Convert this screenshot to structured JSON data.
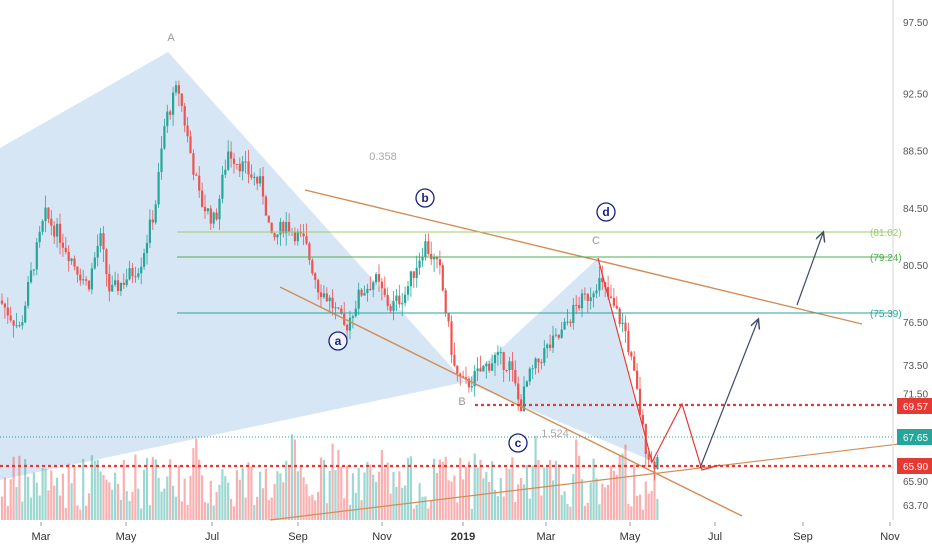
{
  "chart_data": {
    "type": "candlestick",
    "x_axis": {
      "labels": [
        "Mar",
        "May",
        "Jul",
        "Sep",
        "Nov",
        "2019",
        "Mar",
        "May",
        "Jul",
        "Sep",
        "Nov"
      ]
    },
    "y_axis": {
      "ylim": [
        62.5,
        99.0
      ],
      "ticks": [
        "97.50",
        "92.50",
        "88.50",
        "84.50",
        "80.50",
        "76.50",
        "73.50",
        "71.50",
        "65.90",
        "63.70"
      ]
    },
    "price_tags": [
      {
        "value": "69.57",
        "color": "#e53935"
      },
      {
        "value": "67.65",
        "color": "#26a69a"
      },
      {
        "value": "65.90",
        "color": "#e53935"
      }
    ],
    "levels": [
      {
        "label": "(81.02)",
        "value": 81.02,
        "color": "#9ccc65"
      },
      {
        "label": "(79.24)",
        "value": 79.24,
        "color": "#4caf50"
      },
      {
        "label": "(75.39)",
        "value": 75.39,
        "color": "#26a69a"
      }
    ],
    "dotted_levels": [
      {
        "value": 69.57,
        "color": "#e53935"
      },
      {
        "value": 65.9,
        "color": "#e53935"
      }
    ],
    "pattern_labels": {
      "A": "A",
      "B": "B",
      "C": "C",
      "ratio1": "0.358",
      "ratio2": "1.524"
    },
    "wave_labels": [
      "a",
      "b",
      "c",
      "d"
    ],
    "colors": {
      "up": "#26a69a",
      "down": "#ef5350",
      "pattern_fill": "#c9def2",
      "channel": "#d28c57",
      "arrow": "#3f4a6b"
    }
  }
}
